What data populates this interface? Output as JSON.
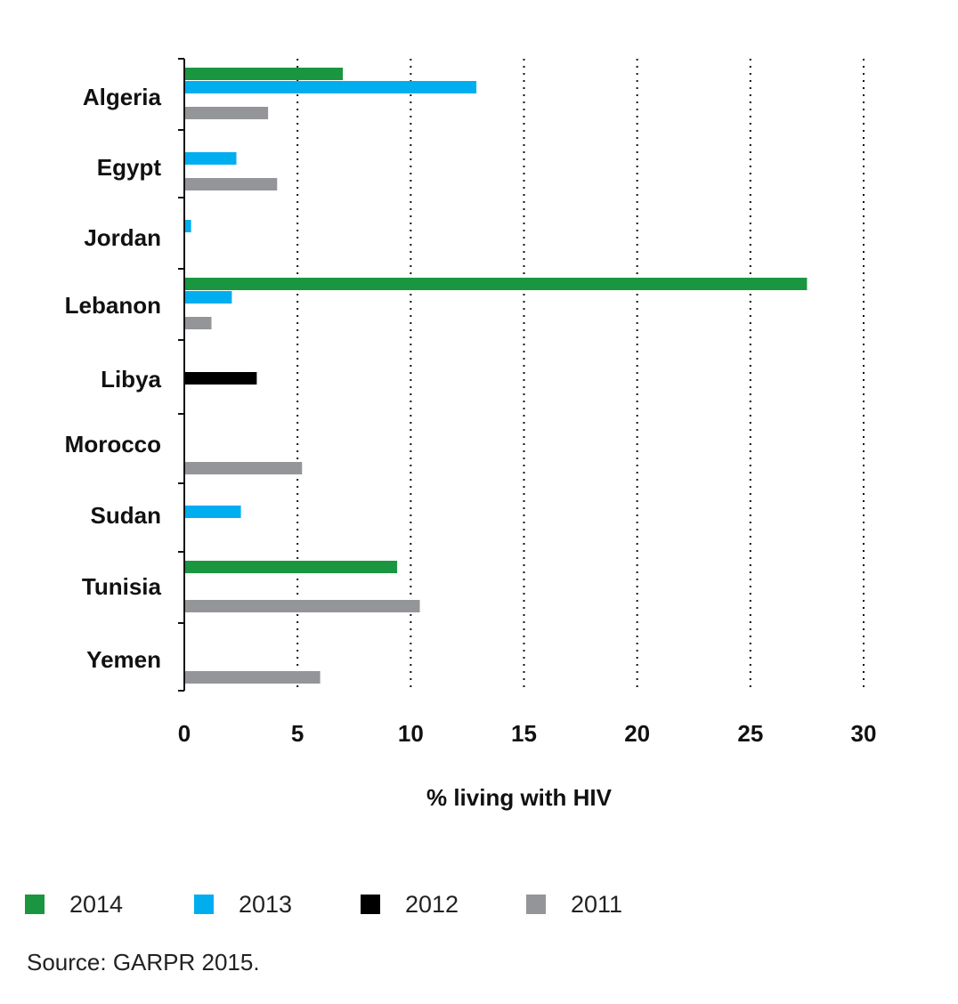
{
  "chart_data": {
    "type": "bar",
    "orientation": "horizontal",
    "categories": [
      "Algeria",
      "Egypt",
      "Jordan",
      "Lebanon",
      "Libya",
      "Morocco",
      "Sudan",
      "Tunisia",
      "Yemen"
    ],
    "series": [
      {
        "name": "2014",
        "color": "#1a9641",
        "values": [
          7.0,
          null,
          null,
          27.5,
          null,
          null,
          null,
          9.4,
          null
        ]
      },
      {
        "name": "2013",
        "color": "#00aeef",
        "values": [
          12.9,
          2.3,
          0.3,
          2.1,
          null,
          null,
          2.5,
          null,
          null
        ]
      },
      {
        "name": "2012",
        "color": "#000000",
        "values": [
          null,
          null,
          null,
          null,
          3.2,
          null,
          null,
          null,
          null
        ]
      },
      {
        "name": "2011",
        "color": "#939598",
        "values": [
          3.7,
          4.1,
          null,
          1.2,
          null,
          5.2,
          null,
          10.4,
          6.0
        ]
      }
    ],
    "xlabel": "% living with HIV",
    "xticks": [
      0,
      5,
      10,
      15,
      20,
      25,
      30
    ],
    "xlim": [
      0,
      30
    ],
    "grid": "vertical dotted",
    "legend_position": "bottom"
  },
  "source": "Source: GARPR 2015."
}
